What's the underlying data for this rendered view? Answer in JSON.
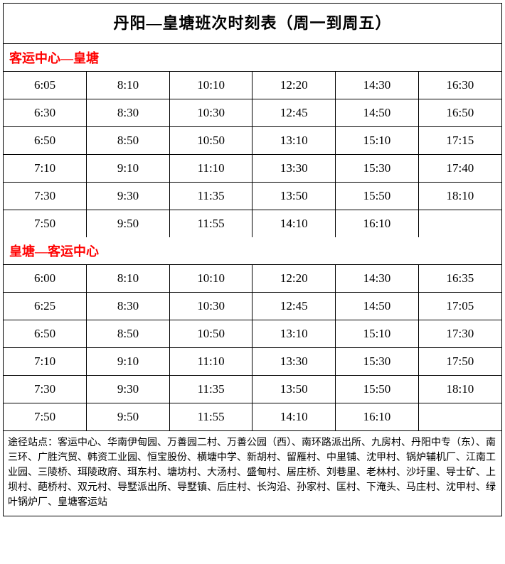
{
  "title": "丹阳—皇塘班次时刻表（周一到周五）",
  "section1": {
    "header": "客运中心—皇塘",
    "rows": [
      [
        "6:05",
        "8:10",
        "10:10",
        "12:20",
        "14:30",
        "16:30"
      ],
      [
        "6:30",
        "8:30",
        "10:30",
        "12:45",
        "14:50",
        "16:50"
      ],
      [
        "6:50",
        "8:50",
        "10:50",
        "13:10",
        "15:10",
        "17:15"
      ],
      [
        "7:10",
        "9:10",
        "11:10",
        "13:30",
        "15:30",
        "17:40"
      ],
      [
        "7:30",
        "9:30",
        "11:35",
        "13:50",
        "15:50",
        "18:10"
      ],
      [
        "7:50",
        "9:50",
        "11:55",
        "14:10",
        "16:10",
        ""
      ]
    ]
  },
  "section2": {
    "header": "皇塘—客运中心",
    "rows": [
      [
        "6:00",
        "8:10",
        "10:10",
        "12:20",
        "14:30",
        "16:35"
      ],
      [
        "6:25",
        "8:30",
        "10:30",
        "12:45",
        "14:50",
        "17:05"
      ],
      [
        "6:50",
        "8:50",
        "10:50",
        "13:10",
        "15:10",
        "17:30"
      ],
      [
        "7:10",
        "9:10",
        "11:10",
        "13:30",
        "15:30",
        "17:50"
      ],
      [
        "7:30",
        "9:30",
        "11:35",
        "13:50",
        "15:50",
        "18:10"
      ],
      [
        "7:50",
        "9:50",
        "11:55",
        "14:10",
        "16:10",
        ""
      ]
    ]
  },
  "footer": "途径站点：客运中心、华南伊甸园、万善园二村、万善公园（西）、南环路派出所、九房村、丹阳中专（东）、南三环、广胜汽贸、韩资工业园、恒宝股份、横塘中学、新胡村、留雁村、中里铺、沈甲村、锅炉辅机厂、江南工业园、三陵桥、珥陵政府、珥东村、塘坊村、大汤村、盛甸村、居庄桥、刘巷里、老林村、沙圩里、导士矿、上坝村、葩桥村、双元村、导墅派出所、导墅镇、后庄村、长沟沿、孙家村、匡村、下淹头、马庄村、沈甲村、绿叶锅炉厂、皇塘客运站",
  "colors": {
    "header_text": "#ff0000",
    "border": "#000000",
    "background": "#ffffff",
    "text": "#000000"
  }
}
